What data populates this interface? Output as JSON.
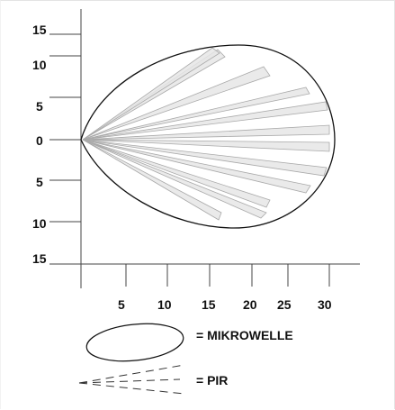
{
  "diagram": {
    "y_axis": {
      "tick_labels": [
        "15",
        "10",
        "5",
        "0",
        "5",
        "10",
        "15"
      ]
    },
    "x_axis": {
      "tick_labels": [
        "5",
        "10",
        "15",
        "20",
        "25",
        "30"
      ]
    },
    "legend": {
      "microwave_label": "= MIKROWELLE",
      "pir_label": "= PIR"
    },
    "colors": {
      "outline": "#111111",
      "beam_fill": "#e6e6e6",
      "beam_stroke": "#a9a9a9",
      "axis": "#444444"
    }
  }
}
